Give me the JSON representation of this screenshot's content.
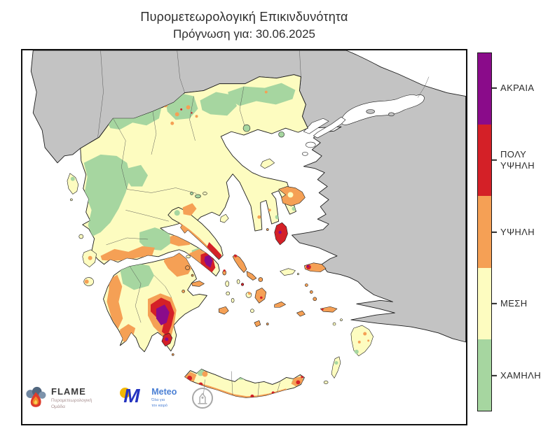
{
  "title": {
    "line1": "Πυρομετεωρολογική Επικινδυνότητα",
    "line2": "Πρόγνωση για: 30.06.2025"
  },
  "legend": {
    "items": [
      {
        "label": "ΑΚΡΑΙΑ",
        "color": "#8a0b8a"
      },
      {
        "label": "ΠΟΛΥ ΥΨΗΛΗ",
        "color": "#d42027"
      },
      {
        "label": "ΥΨΗΛΗ",
        "color": "#f5a055"
      },
      {
        "label": "ΜΕΣΗ",
        "color": "#fdfcc0"
      },
      {
        "label": "ΧΑΜΗΛΗ",
        "color": "#a6d6a0"
      }
    ]
  },
  "map": {
    "colors": {
      "out_of_domain_gray": "#c3c3c3",
      "sea_white": "#ffffff",
      "coastline": "#1c1c1c"
    }
  },
  "logos": {
    "flame": {
      "name": "FLAME",
      "subtitle_line1": "Πυρομετεωρολογική",
      "subtitle_line2": "Ομάδα"
    },
    "meteo": {
      "name": "Meteo",
      "tagline_line1": "Όλα για",
      "tagline_line2": "τον καιρό"
    }
  }
}
